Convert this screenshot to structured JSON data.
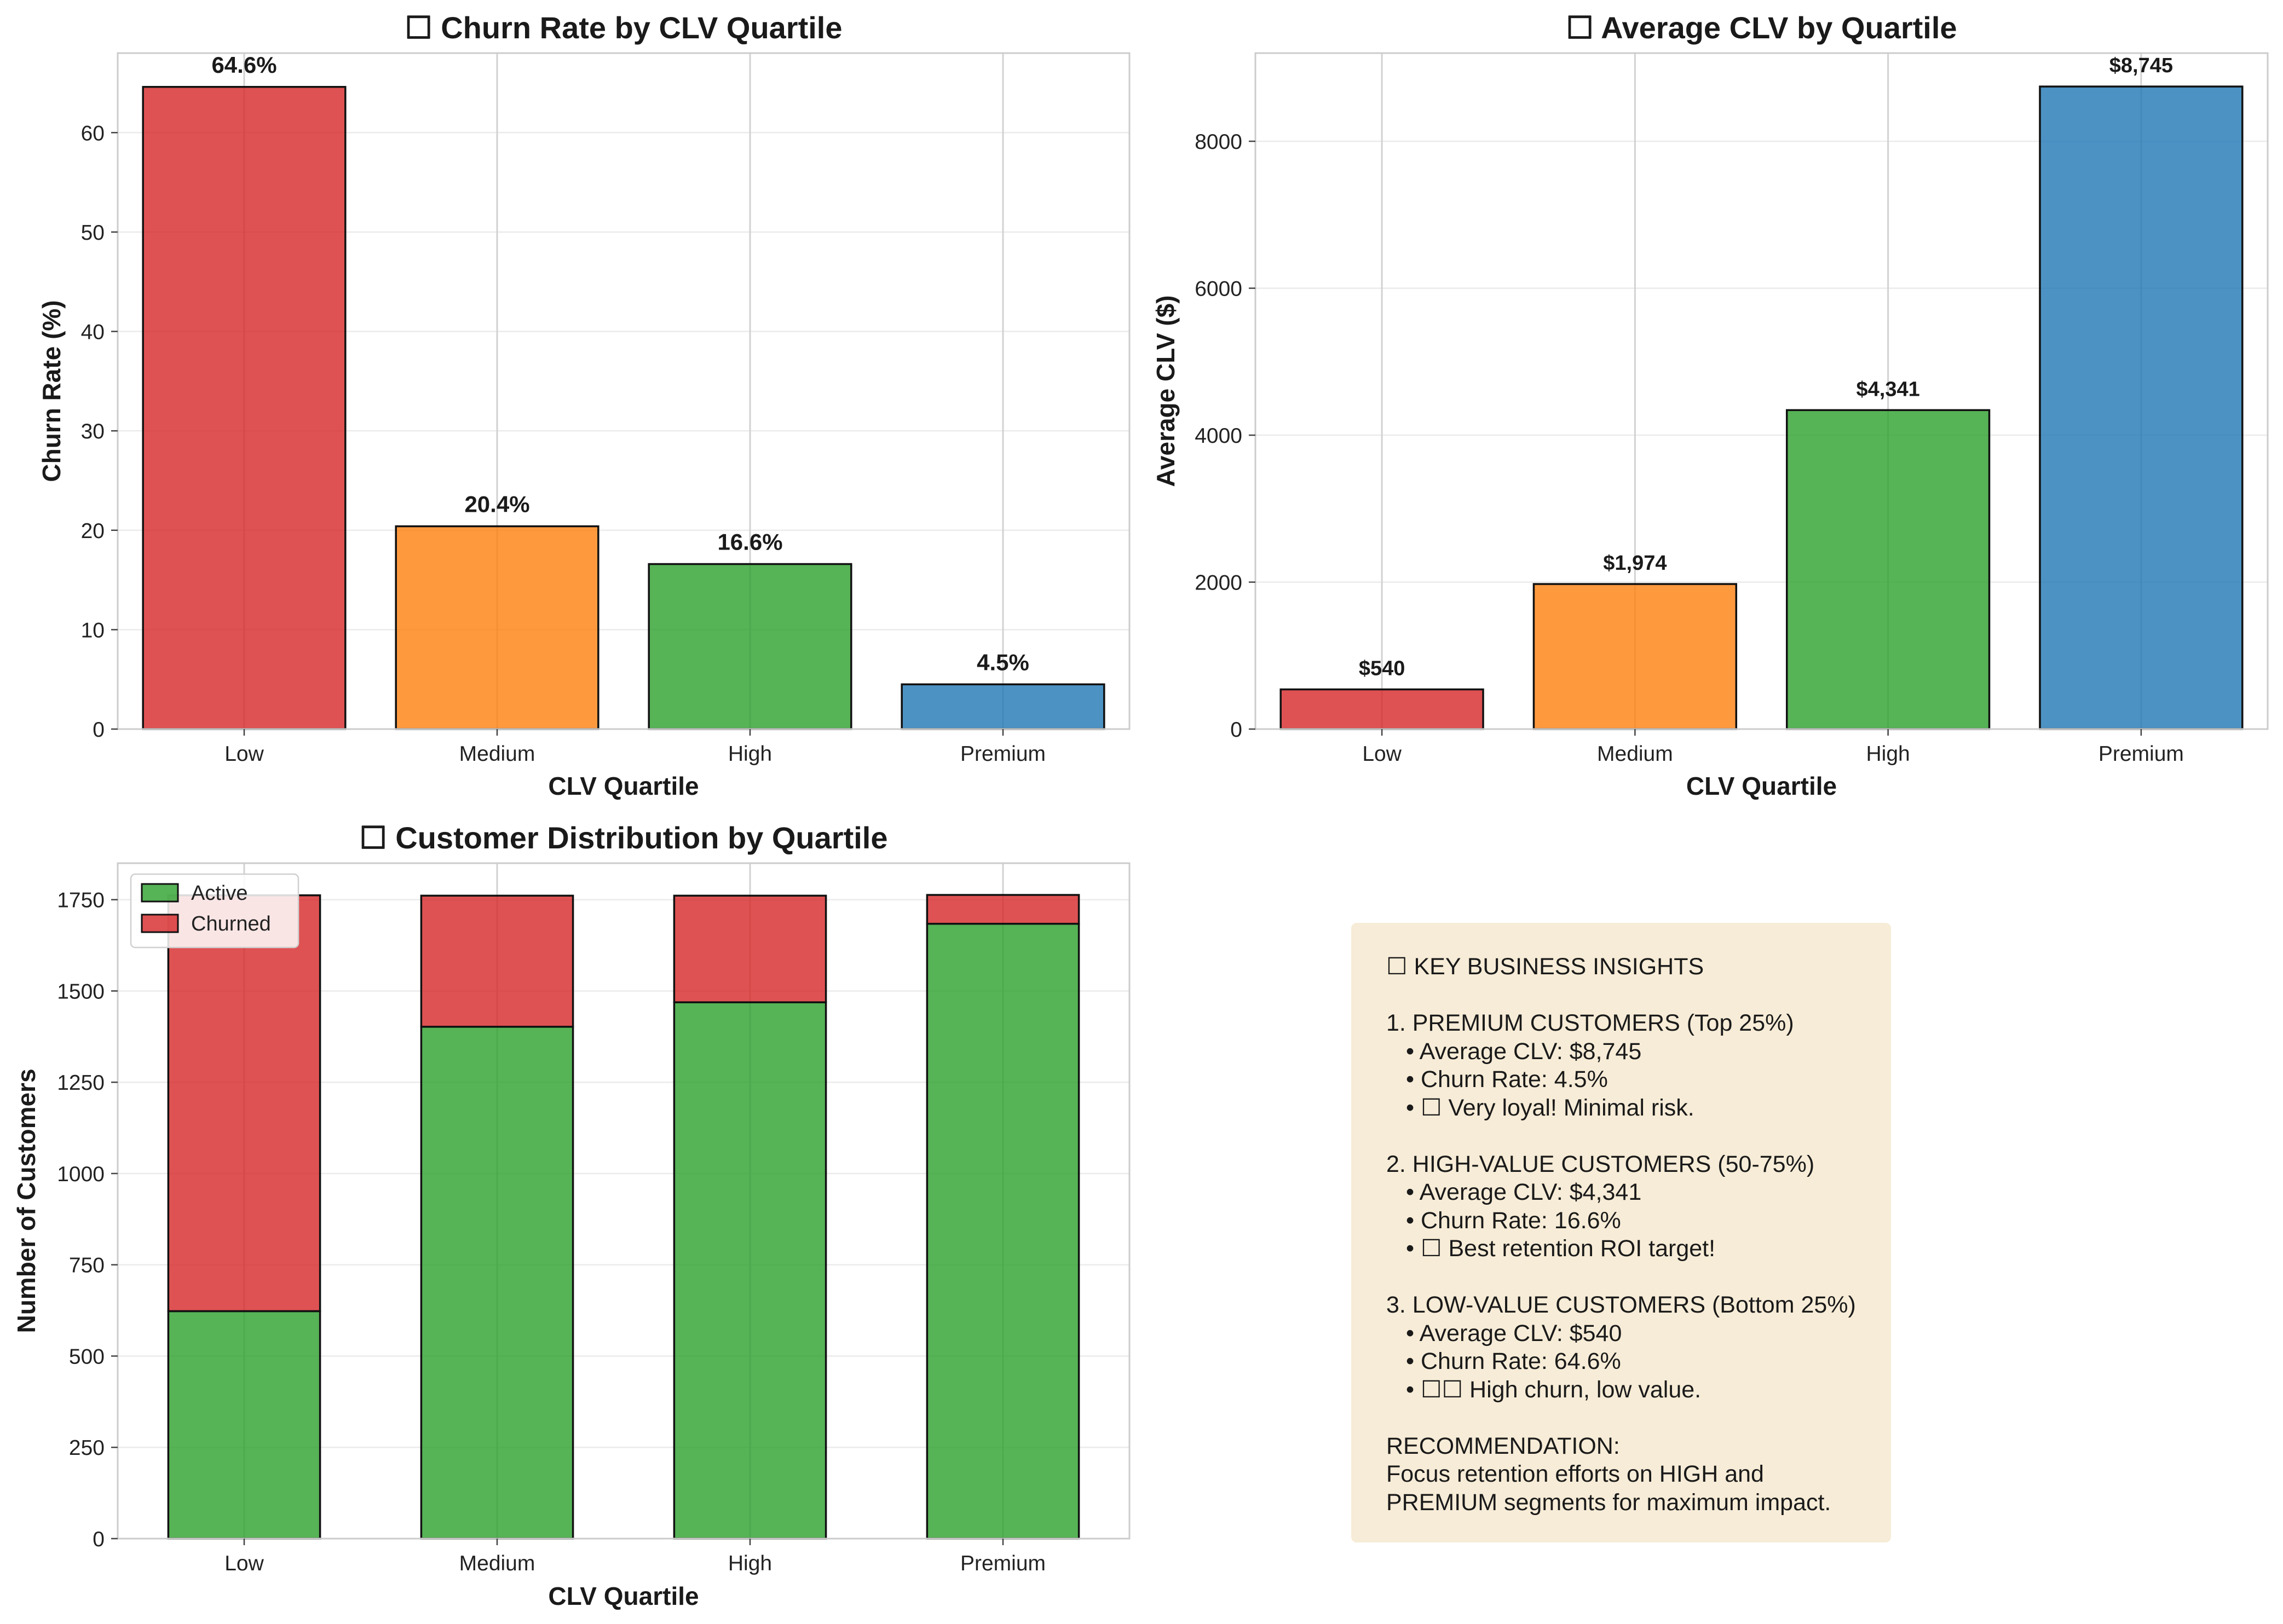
{
  "chart_data": [
    {
      "type": "bar",
      "title": "☐ Churn Rate by CLV Quartile",
      "xlabel": "CLV Quartile",
      "ylabel": "Churn Rate (%)",
      "categories": [
        "Low",
        "Medium",
        "High",
        "Premium"
      ],
      "values": [
        64.6,
        20.4,
        16.6,
        4.5
      ],
      "data_labels": [
        "64.6%",
        "20.4%",
        "16.6%",
        "4.5%"
      ],
      "colors": [
        "#d62728",
        "#ff7f0e",
        "#2ca02c",
        "#1f77b4"
      ],
      "ylim": [
        0,
        68
      ],
      "yticks": [
        0,
        10,
        20,
        30,
        40,
        50,
        60
      ],
      "grid": true
    },
    {
      "type": "bar",
      "title": "☐ Average CLV by Quartile",
      "xlabel": "CLV Quartile",
      "ylabel": "Average CLV ($)",
      "categories": [
        "Low",
        "Medium",
        "High",
        "Premium"
      ],
      "values": [
        540,
        1974,
        4341,
        8745
      ],
      "data_labels": [
        "$540",
        "$1,974",
        "$4,341",
        "$8,745"
      ],
      "colors": [
        "#d62728",
        "#ff7f0e",
        "#2ca02c",
        "#1f77b4"
      ],
      "ylim": [
        0,
        9200
      ],
      "yticks": [
        0,
        2000,
        4000,
        6000,
        8000
      ],
      "grid": true
    },
    {
      "type": "bar",
      "stacked": true,
      "title": "☐ Customer Distribution by Quartile",
      "xlabel": "CLV Quartile",
      "ylabel": "Number of Customers",
      "categories": [
        "Low",
        "Medium",
        "High",
        "Premium"
      ],
      "series": [
        {
          "name": "Active",
          "color": "#2ca02c",
          "values": [
            623,
            1402,
            1469,
            1684
          ]
        },
        {
          "name": "Churned",
          "color": "#d62728",
          "values": [
            1139,
            359,
            292,
            79
          ]
        }
      ],
      "ylim": [
        0,
        1850
      ],
      "yticks": [
        0,
        250,
        500,
        750,
        1000,
        1250,
        1500,
        1750
      ],
      "legend": "top-left",
      "grid": true
    }
  ],
  "insights": {
    "lines": [
      {
        "text": "☐ KEY BUSINESS INSIGHTS",
        "indent": false
      },
      {
        "text": "",
        "indent": false
      },
      {
        "text": "1. PREMIUM CUSTOMERS (Top 25%)",
        "indent": false
      },
      {
        "text": "• Average CLV: $8,745",
        "indent": true
      },
      {
        "text": "• Churn Rate: 4.5%",
        "indent": true
      },
      {
        "text": "• ☐ Very loyal! Minimal risk.",
        "indent": true
      },
      {
        "text": "",
        "indent": false
      },
      {
        "text": "2. HIGH-VALUE CUSTOMERS (50-75%)",
        "indent": false
      },
      {
        "text": "• Average CLV: $4,341",
        "indent": true
      },
      {
        "text": "• Churn Rate: 16.6%",
        "indent": true
      },
      {
        "text": "• ☐ Best retention ROI target!",
        "indent": true
      },
      {
        "text": "",
        "indent": false
      },
      {
        "text": "3. LOW-VALUE CUSTOMERS (Bottom 25%)",
        "indent": false
      },
      {
        "text": "• Average CLV: $540",
        "indent": true
      },
      {
        "text": "• Churn Rate: 64.6%",
        "indent": true
      },
      {
        "text": "• ☐☐ High churn, low value.",
        "indent": true
      },
      {
        "text": "",
        "indent": false
      },
      {
        "text": "RECOMMENDATION:",
        "indent": false
      },
      {
        "text": "Focus retention efforts on HIGH and",
        "indent": false
      },
      {
        "text": "PREMIUM segments for maximum impact.",
        "indent": false
      }
    ]
  }
}
